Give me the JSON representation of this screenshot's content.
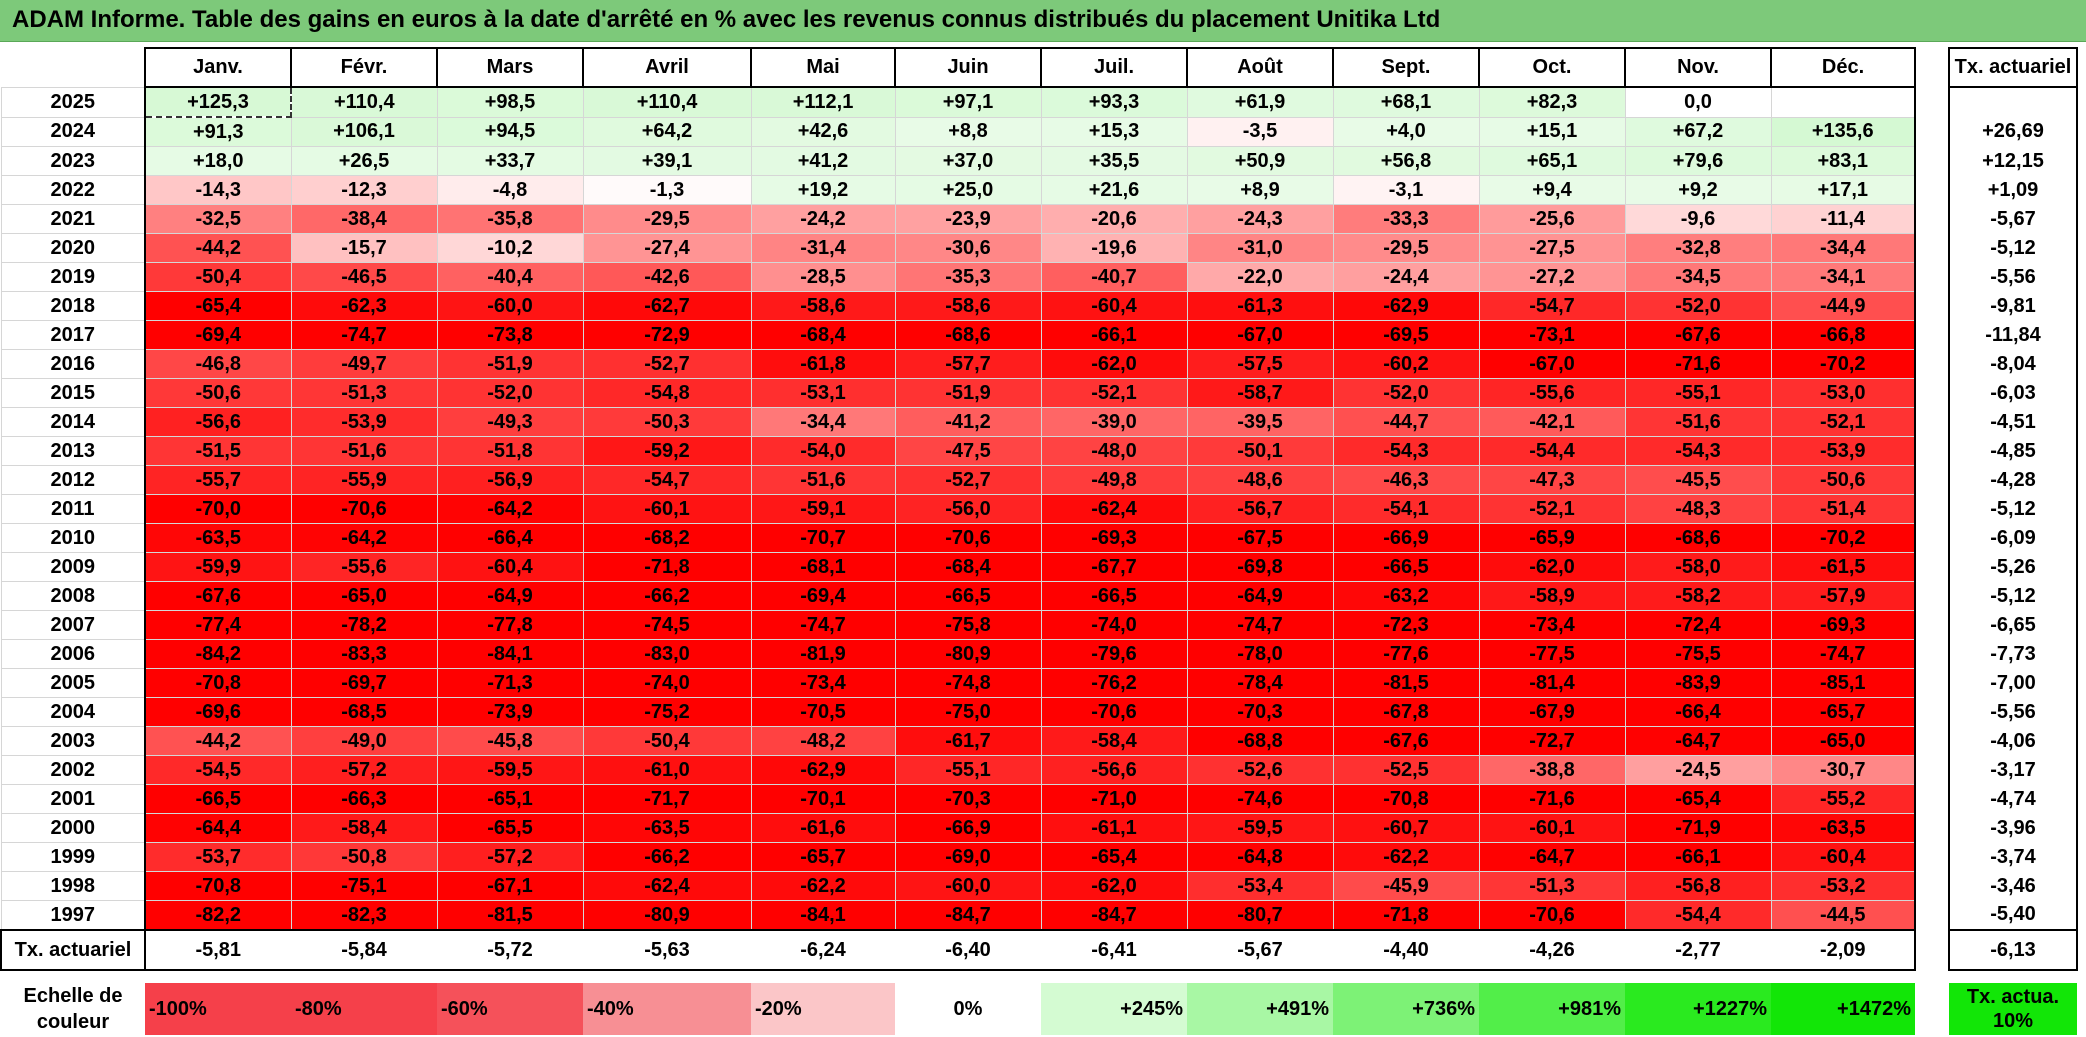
{
  "title": "ADAM Informe. Table des gains en euros à la date d'arrêté en % avec les revenus connus distribués du placement Unitika Ltd",
  "months": [
    "Janv.",
    "Févr.",
    "Mars",
    "Avril",
    "Mai",
    "Juin",
    "Juil.",
    "Août",
    "Sept.",
    "Oct.",
    "Nov.",
    "Déc."
  ],
  "ta_header": "Tx. actuariel",
  "rows": [
    {
      "year": "2025",
      "values": [
        "+125,3",
        "+110,4",
        "+98,5",
        "+110,4",
        "+112,1",
        "+97,1",
        "+93,3",
        "+61,9",
        "+68,1",
        "+82,3",
        "0,0",
        ""
      ],
      "ta": ""
    },
    {
      "year": "2024",
      "values": [
        "+91,3",
        "+106,1",
        "+94,5",
        "+64,2",
        "+42,6",
        "+8,8",
        "+15,3",
        "-3,5",
        "+4,0",
        "+15,1",
        "+67,2",
        "+135,6"
      ],
      "ta": "+26,69"
    },
    {
      "year": "2023",
      "values": [
        "+18,0",
        "+26,5",
        "+33,7",
        "+39,1",
        "+41,2",
        "+37,0",
        "+35,5",
        "+50,9",
        "+56,8",
        "+65,1",
        "+79,6",
        "+83,1"
      ],
      "ta": "+12,15"
    },
    {
      "year": "2022",
      "values": [
        "-14,3",
        "-12,3",
        "-4,8",
        "-1,3",
        "+19,2",
        "+25,0",
        "+21,6",
        "+8,9",
        "-3,1",
        "+9,4",
        "+9,2",
        "+17,1"
      ],
      "ta": "+1,09"
    },
    {
      "year": "2021",
      "values": [
        "-32,5",
        "-38,4",
        "-35,8",
        "-29,5",
        "-24,2",
        "-23,9",
        "-20,6",
        "-24,3",
        "-33,3",
        "-25,6",
        "-9,6",
        "-11,4"
      ],
      "ta": "-5,67"
    },
    {
      "year": "2020",
      "values": [
        "-44,2",
        "-15,7",
        "-10,2",
        "-27,4",
        "-31,4",
        "-30,6",
        "-19,6",
        "-31,0",
        "-29,5",
        "-27,5",
        "-32,8",
        "-34,4"
      ],
      "ta": "-5,12"
    },
    {
      "year": "2019",
      "values": [
        "-50,4",
        "-46,5",
        "-40,4",
        "-42,6",
        "-28,5",
        "-35,3",
        "-40,7",
        "-22,0",
        "-24,4",
        "-27,2",
        "-34,5",
        "-34,1"
      ],
      "ta": "-5,56"
    },
    {
      "year": "2018",
      "values": [
        "-65,4",
        "-62,3",
        "-60,0",
        "-62,7",
        "-58,6",
        "-58,6",
        "-60,4",
        "-61,3",
        "-62,9",
        "-54,7",
        "-52,0",
        "-44,9"
      ],
      "ta": "-9,81"
    },
    {
      "year": "2017",
      "values": [
        "-69,4",
        "-74,7",
        "-73,8",
        "-72,9",
        "-68,4",
        "-68,6",
        "-66,1",
        "-67,0",
        "-69,5",
        "-73,1",
        "-67,6",
        "-66,8"
      ],
      "ta": "-11,84"
    },
    {
      "year": "2016",
      "values": [
        "-46,8",
        "-49,7",
        "-51,9",
        "-52,7",
        "-61,8",
        "-57,7",
        "-62,0",
        "-57,5",
        "-60,2",
        "-67,0",
        "-71,6",
        "-70,2"
      ],
      "ta": "-8,04"
    },
    {
      "year": "2015",
      "values": [
        "-50,6",
        "-51,3",
        "-52,0",
        "-54,8",
        "-53,1",
        "-51,9",
        "-52,1",
        "-58,7",
        "-52,0",
        "-55,6",
        "-55,1",
        "-53,0"
      ],
      "ta": "-6,03"
    },
    {
      "year": "2014",
      "values": [
        "-56,6",
        "-53,9",
        "-49,3",
        "-50,3",
        "-34,4",
        "-41,2",
        "-39,0",
        "-39,5",
        "-44,7",
        "-42,1",
        "-51,6",
        "-52,1"
      ],
      "ta": "-4,51"
    },
    {
      "year": "2013",
      "values": [
        "-51,5",
        "-51,6",
        "-51,8",
        "-59,2",
        "-54,0",
        "-47,5",
        "-48,0",
        "-50,1",
        "-54,3",
        "-54,4",
        "-54,3",
        "-53,9"
      ],
      "ta": "-4,85"
    },
    {
      "year": "2012",
      "values": [
        "-55,7",
        "-55,9",
        "-56,9",
        "-54,7",
        "-51,6",
        "-52,7",
        "-49,8",
        "-48,6",
        "-46,3",
        "-47,3",
        "-45,5",
        "-50,6"
      ],
      "ta": "-4,28"
    },
    {
      "year": "2011",
      "values": [
        "-70,0",
        "-70,6",
        "-64,2",
        "-60,1",
        "-59,1",
        "-56,0",
        "-62,4",
        "-56,7",
        "-54,1",
        "-52,1",
        "-48,3",
        "-51,4"
      ],
      "ta": "-5,12"
    },
    {
      "year": "2010",
      "values": [
        "-63,5",
        "-64,2",
        "-66,4",
        "-68,2",
        "-70,7",
        "-70,6",
        "-69,3",
        "-67,5",
        "-66,9",
        "-65,9",
        "-68,6",
        "-70,2"
      ],
      "ta": "-6,09"
    },
    {
      "year": "2009",
      "values": [
        "-59,9",
        "-55,6",
        "-60,4",
        "-71,8",
        "-68,1",
        "-68,4",
        "-67,7",
        "-69,8",
        "-66,5",
        "-62,0",
        "-58,0",
        "-61,5"
      ],
      "ta": "-5,26"
    },
    {
      "year": "2008",
      "values": [
        "-67,6",
        "-65,0",
        "-64,9",
        "-66,2",
        "-69,4",
        "-66,5",
        "-66,5",
        "-64,9",
        "-63,2",
        "-58,9",
        "-58,2",
        "-57,9"
      ],
      "ta": "-5,12"
    },
    {
      "year": "2007",
      "values": [
        "-77,4",
        "-78,2",
        "-77,8",
        "-74,5",
        "-74,7",
        "-75,8",
        "-74,0",
        "-74,7",
        "-72,3",
        "-73,4",
        "-72,4",
        "-69,3"
      ],
      "ta": "-6,65"
    },
    {
      "year": "2006",
      "values": [
        "-84,2",
        "-83,3",
        "-84,1",
        "-83,0",
        "-81,9",
        "-80,9",
        "-79,6",
        "-78,0",
        "-77,6",
        "-77,5",
        "-75,5",
        "-74,7"
      ],
      "ta": "-7,73"
    },
    {
      "year": "2005",
      "values": [
        "-70,8",
        "-69,7",
        "-71,3",
        "-74,0",
        "-73,4",
        "-74,8",
        "-76,2",
        "-78,4",
        "-81,5",
        "-81,4",
        "-83,9",
        "-85,1"
      ],
      "ta": "-7,00"
    },
    {
      "year": "2004",
      "values": [
        "-69,6",
        "-68,5",
        "-73,9",
        "-75,2",
        "-70,5",
        "-75,0",
        "-70,6",
        "-70,3",
        "-67,8",
        "-67,9",
        "-66,4",
        "-65,7"
      ],
      "ta": "-5,56"
    },
    {
      "year": "2003",
      "values": [
        "-44,2",
        "-49,0",
        "-45,8",
        "-50,4",
        "-48,2",
        "-61,7",
        "-58,4",
        "-68,8",
        "-67,6",
        "-72,7",
        "-64,7",
        "-65,0"
      ],
      "ta": "-4,06"
    },
    {
      "year": "2002",
      "values": [
        "-54,5",
        "-57,2",
        "-59,5",
        "-61,0",
        "-62,9",
        "-55,1",
        "-56,6",
        "-52,6",
        "-52,5",
        "-38,8",
        "-24,5",
        "-30,7"
      ],
      "ta": "-3,17"
    },
    {
      "year": "2001",
      "values": [
        "-66,5",
        "-66,3",
        "-65,1",
        "-71,7",
        "-70,1",
        "-70,3",
        "-71,0",
        "-74,6",
        "-70,8",
        "-71,6",
        "-65,4",
        "-55,2"
      ],
      "ta": "-4,74"
    },
    {
      "year": "2000",
      "values": [
        "-64,4",
        "-58,4",
        "-65,5",
        "-63,5",
        "-61,6",
        "-66,9",
        "-61,1",
        "-59,5",
        "-60,7",
        "-60,1",
        "-71,9",
        "-63,5"
      ],
      "ta": "-3,96"
    },
    {
      "year": "1999",
      "values": [
        "-53,7",
        "-50,8",
        "-57,2",
        "-66,2",
        "-65,7",
        "-69,0",
        "-65,4",
        "-64,8",
        "-62,2",
        "-64,7",
        "-66,1",
        "-60,4"
      ],
      "ta": "-3,74"
    },
    {
      "year": "1998",
      "values": [
        "-70,8",
        "-75,1",
        "-67,1",
        "-62,4",
        "-62,2",
        "-60,0",
        "-62,0",
        "-53,4",
        "-45,9",
        "-51,3",
        "-56,8",
        "-53,2"
      ],
      "ta": "-3,46"
    },
    {
      "year": "1997",
      "values": [
        "-82,2",
        "-82,3",
        "-81,5",
        "-80,9",
        "-84,1",
        "-84,7",
        "-84,7",
        "-80,7",
        "-71,8",
        "-70,6",
        "-54,4",
        "-44,5"
      ],
      "ta": "-5,40"
    }
  ],
  "footer": {
    "label": "Tx. actuariel",
    "values": [
      "-5,81",
      "-5,84",
      "-5,72",
      "-5,63",
      "-6,24",
      "-6,40",
      "-6,41",
      "-5,67",
      "-4,40",
      "-4,26",
      "-2,77",
      "-2,09"
    ],
    "ta": "-6,13"
  },
  "scale": {
    "label": "Echelle de couleur",
    "steps": [
      {
        "label": "-100%",
        "color": "#f5404a"
      },
      {
        "label": "-80%",
        "color": "#f5404a"
      },
      {
        "label": "-60%",
        "color": "#f5515a"
      },
      {
        "label": "-40%",
        "color": "#f78f94"
      },
      {
        "label": "-20%",
        "color": "#fbc6c8"
      },
      {
        "label": "0%",
        "color": "#ffffff"
      },
      {
        "label": "+245%",
        "color": "#d4fbd2"
      },
      {
        "label": "+491%",
        "color": "#a8f7a4"
      },
      {
        "label": "+736%",
        "color": "#7df276"
      },
      {
        "label": "+981%",
        "color": "#52ee49"
      },
      {
        "label": "+1227%",
        "color": "#2aea1f"
      },
      {
        "label": "+1472%",
        "color": "#12e607"
      }
    ],
    "ta_label": "Tx. actua. 10%",
    "ta_color": "#12e607"
  },
  "colors": {
    "title_bg": "#7dc97a",
    "negative_max": "#ff0000",
    "positive_light": "#e9fbe8",
    "positive_max": "#12e607"
  }
}
